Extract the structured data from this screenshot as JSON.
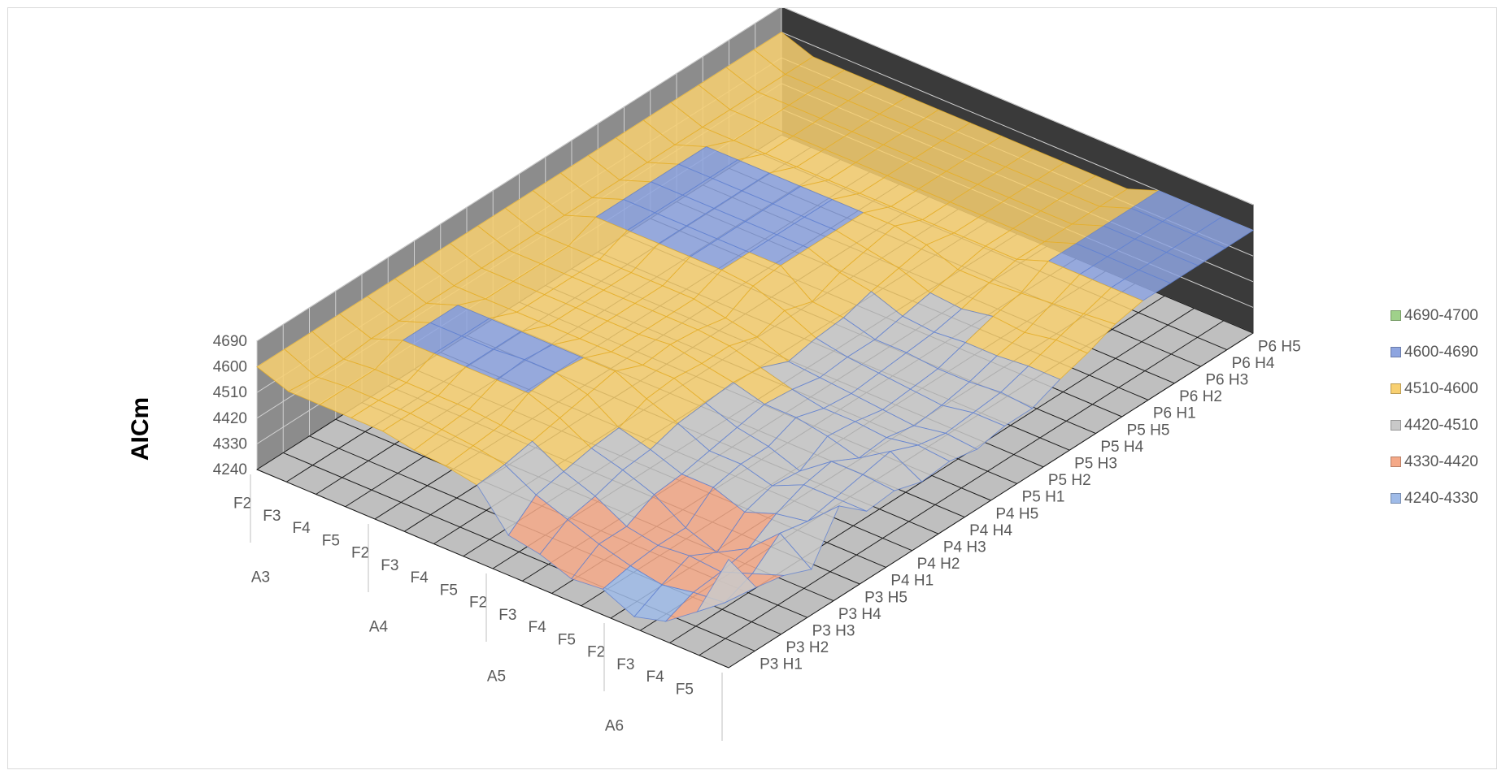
{
  "chart_data": {
    "type": "surface",
    "title": "",
    "zlabel": "AICm",
    "z_ticks": [
      "4240",
      "4330",
      "4420",
      "4510",
      "4600",
      "4690"
    ],
    "z_range": [
      4240,
      4690
    ],
    "x_groups": [
      {
        "label": "A3",
        "items": [
          "F2",
          "F3",
          "F4",
          "F5"
        ]
      },
      {
        "label": "A4",
        "items": [
          "F2",
          "F3",
          "F4",
          "F5"
        ]
      },
      {
        "label": "A5",
        "items": [
          "F2",
          "F3",
          "F4",
          "F5"
        ]
      },
      {
        "label": "A6",
        "items": [
          "F2",
          "F3",
          "F4",
          "F5"
        ]
      }
    ],
    "y_categories": [
      "P3 H1",
      "P3 H2",
      "P3 H3",
      "P3 H4",
      "P3 H5",
      "P4 H1",
      "P4 H2",
      "P4 H3",
      "P4 H4",
      "P4 H5",
      "P5 H1",
      "P5 H2",
      "P5 H3",
      "P5 H4",
      "P5 H5",
      "P6 H1",
      "P6 H2",
      "P6 H3",
      "P6 H4",
      "P6 H5"
    ],
    "legend": [
      {
        "label": "4690-4700",
        "color": "#9fd18a"
      },
      {
        "label": "4600-4690",
        "color": "#8ea5e0"
      },
      {
        "label": "4510-4600",
        "color": "#f8d071"
      },
      {
        "label": "4420-4510",
        "color": "#c9c9c9"
      },
      {
        "label": "4330-4420",
        "color": "#f5a988"
      },
      {
        "label": "4240-4330",
        "color": "#9fbbe8"
      }
    ],
    "legend_position": "right",
    "grid": true,
    "bands": [
      {
        "min": 4240,
        "max": 4330,
        "color": "#9fbbe8"
      },
      {
        "min": 4330,
        "max": 4420,
        "color": "#f5a988"
      },
      {
        "min": 4420,
        "max": 4510,
        "color": "#c9c9c9"
      },
      {
        "min": 4510,
        "max": 4600,
        "color": "#f8d071"
      },
      {
        "min": 4600,
        "max": 4690,
        "color": "#8ea5e0"
      },
      {
        "min": 4690,
        "max": 4700,
        "color": "#9fd18a"
      }
    ],
    "values": [
      [
        4600,
        4600,
        4600,
        4600,
        4600,
        4600,
        4600,
        4600,
        4600,
        4600,
        4600,
        4600,
        4600,
        4600,
        4600,
        4600,
        4600,
        4600,
        4600,
        4600
      ],
      [
        4560,
        4550,
        4550,
        4560,
        4560,
        4560,
        4560,
        4560,
        4560,
        4560,
        4560,
        4560,
        4560,
        4560,
        4560,
        4560,
        4560,
        4560,
        4560,
        4560
      ],
      [
        4560,
        4560,
        4560,
        4600,
        4600,
        4600,
        4560,
        4560,
        4560,
        4560,
        4600,
        4600,
        4600,
        4600,
        4600,
        4560,
        4560,
        4560,
        4560,
        4560
      ],
      [
        4560,
        4560,
        4560,
        4600,
        4600,
        4600,
        4560,
        4560,
        4560,
        4560,
        4600,
        4600,
        4600,
        4600,
        4600,
        4560,
        4560,
        4560,
        4560,
        4560
      ],
      [
        4560,
        4560,
        4560,
        4600,
        4600,
        4600,
        4560,
        4560,
        4560,
        4560,
        4600,
        4600,
        4600,
        4600,
        4600,
        4560,
        4560,
        4560,
        4560,
        4560
      ],
      [
        4540,
        4550,
        4560,
        4600,
        4610,
        4600,
        4560,
        4560,
        4560,
        4560,
        4600,
        4600,
        4600,
        4600,
        4600,
        4560,
        4560,
        4560,
        4560,
        4560
      ],
      [
        4530,
        4540,
        4550,
        4600,
        4610,
        4600,
        4560,
        4560,
        4560,
        4560,
        4600,
        4600,
        4600,
        4600,
        4600,
        4560,
        4560,
        4560,
        4560,
        4560
      ],
      [
        4510,
        4520,
        4540,
        4560,
        4580,
        4600,
        4560,
        4570,
        4560,
        4540,
        4590,
        4600,
        4600,
        4600,
        4600,
        4560,
        4560,
        4560,
        4560,
        4560
      ],
      [
        4380,
        4460,
        4480,
        4500,
        4510,
        4550,
        4560,
        4550,
        4550,
        4520,
        4550,
        4520,
        4560,
        4580,
        4600,
        4560,
        4560,
        4560,
        4560,
        4560
      ],
      [
        4360,
        4420,
        4440,
        4470,
        4480,
        4510,
        4520,
        4530,
        4520,
        4480,
        4500,
        4510,
        4540,
        4560,
        4580,
        4560,
        4560,
        4560,
        4560,
        4560
      ],
      [
        4320,
        4380,
        4380,
        4430,
        4440,
        4460,
        4480,
        4500,
        4490,
        4470,
        4480,
        4480,
        4500,
        4520,
        4540,
        4560,
        4560,
        4560,
        4560,
        4560
      ],
      [
        4330,
        4350,
        4360,
        4360,
        4440,
        4460,
        4460,
        4500,
        4470,
        4460,
        4470,
        4480,
        4490,
        4510,
        4540,
        4560,
        4560,
        4560,
        4560,
        4560
      ],
      [
        4280,
        4330,
        4370,
        4320,
        4400,
        4430,
        4420,
        4480,
        4470,
        4450,
        4460,
        4470,
        4500,
        4530,
        4550,
        4600,
        4600,
        4600,
        4600,
        4600
      ],
      [
        4310,
        4350,
        4360,
        4380,
        4440,
        4480,
        4500,
        4450,
        4460,
        4440,
        4450,
        4470,
        4500,
        4520,
        4560,
        4600,
        4600,
        4600,
        4600,
        4600
      ],
      [
        4390,
        4360,
        4400,
        4480,
        4460,
        4480,
        4500,
        4520,
        4480,
        4460,
        4470,
        4480,
        4510,
        4540,
        4570,
        4600,
        4600,
        4600,
        4600,
        4600
      ],
      [
        4620,
        4460,
        4440,
        4400,
        4560,
        4480,
        4490,
        4460,
        4470,
        4450,
        4470,
        4470,
        4510,
        4540,
        4580,
        4600,
        4600,
        4600,
        4600,
        4600
      ]
    ]
  }
}
